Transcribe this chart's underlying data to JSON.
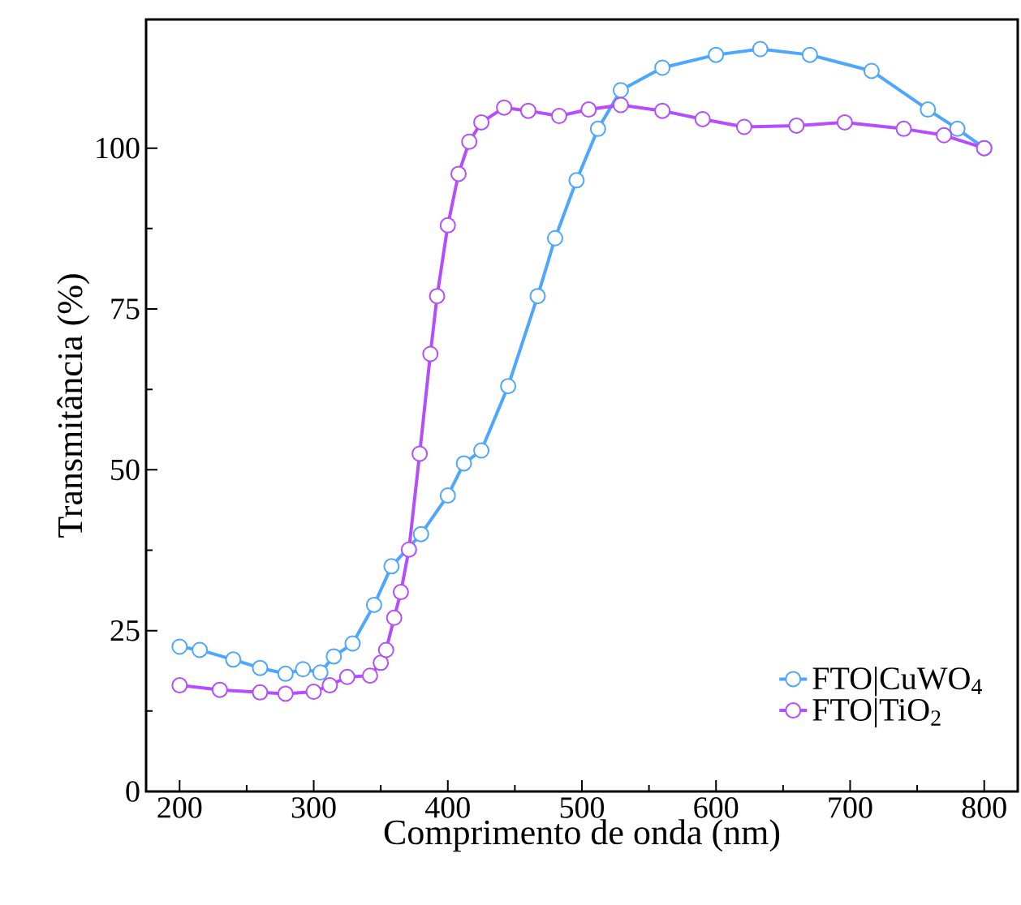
{
  "chart_data": {
    "type": "line",
    "xlabel": "Comprimento de onda (nm)",
    "ylabel": "Transmitância (%)",
    "xlim": [
      175,
      825
    ],
    "xticks": [
      200,
      300,
      400,
      500,
      600,
      700,
      800
    ],
    "ylim": [
      0,
      120
    ],
    "yticks": [
      0,
      25,
      50,
      75,
      100
    ],
    "marker": "circle",
    "line_style": "solid",
    "legend": "bottom right",
    "series": [
      {
        "name": "FTO|CuWO$_{4}$",
        "color": "#4da6ff",
        "x": [
          200,
          215,
          240,
          260,
          279,
          292,
          305,
          315,
          329,
          345,
          358,
          380,
          400,
          412,
          425,
          445,
          467,
          480,
          496,
          512,
          529,
          560,
          600,
          633,
          670,
          716,
          758,
          780,
          800
        ],
        "values": [
          22.5,
          22,
          20.5,
          19.2,
          18.3,
          19,
          18.5,
          21,
          23,
          29,
          35,
          40,
          46,
          51,
          53,
          63,
          77,
          86,
          95,
          103,
          109,
          112.5,
          114.5,
          115.4,
          114.5,
          112,
          106,
          103,
          100
        ]
      },
      {
        "name": "FTO|TiO$_{2}$",
        "color": "#b44dff",
        "x": [
          200,
          230,
          260,
          279,
          300,
          312,
          325,
          342,
          350,
          354,
          360,
          365,
          371,
          379,
          387,
          392,
          400,
          408,
          416,
          425,
          442,
          460,
          483,
          505,
          529,
          560,
          590,
          621,
          660,
          696,
          740,
          770,
          800
        ],
        "values": [
          16.5,
          15.8,
          15.4,
          15.2,
          15.5,
          16.5,
          17.8,
          18,
          20,
          22,
          27,
          31,
          37.6,
          52.5,
          68,
          77,
          88,
          96,
          101,
          104,
          106.3,
          105.8,
          105,
          106,
          106.7,
          105.8,
          104.5,
          103.3,
          103.5,
          104,
          103,
          102,
          100
        ]
      }
    ]
  }
}
